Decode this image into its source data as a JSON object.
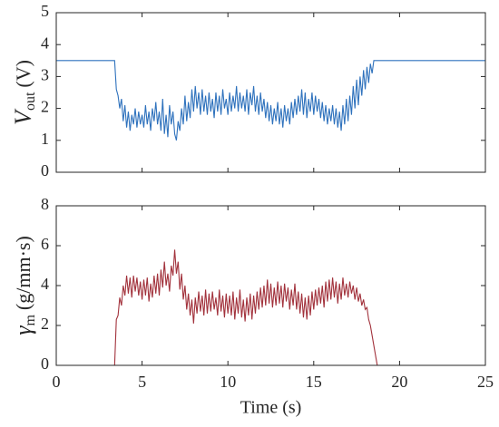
{
  "chart_data": [
    {
      "type": "line",
      "color": "#2f72bd",
      "ylabel": {
        "symbol": "V",
        "subscript": "out",
        "unit": "(V)"
      },
      "xlim": [
        0,
        25
      ],
      "xticks": [
        0,
        5,
        10,
        15,
        20,
        25
      ],
      "ylim": [
        0,
        5
      ],
      "yticks": [
        0,
        1,
        2,
        3,
        4,
        5
      ],
      "x": [
        0,
        3.4,
        3.5,
        3.6,
        3.7,
        3.8,
        3.9,
        4.0,
        4.1,
        4.2,
        4.3,
        4.4,
        4.5,
        4.6,
        4.7,
        4.8,
        4.9,
        5.0,
        5.1,
        5.2,
        5.3,
        5.4,
        5.5,
        5.6,
        5.7,
        5.8,
        5.9,
        6.0,
        6.1,
        6.2,
        6.3,
        6.4,
        6.5,
        6.6,
        6.7,
        6.8,
        6.9,
        7.0,
        7.1,
        7.2,
        7.3,
        7.4,
        7.5,
        7.6,
        7.7,
        7.8,
        7.9,
        8.0,
        8.1,
        8.2,
        8.3,
        8.4,
        8.5,
        8.6,
        8.7,
        8.8,
        8.9,
        9.0,
        9.1,
        9.2,
        9.3,
        9.4,
        9.5,
        9.6,
        9.7,
        9.8,
        9.9,
        10.0,
        10.1,
        10.2,
        10.3,
        10.4,
        10.5,
        10.6,
        10.7,
        10.8,
        10.9,
        11.0,
        11.1,
        11.2,
        11.3,
        11.4,
        11.5,
        11.6,
        11.7,
        11.8,
        11.9,
        12.0,
        12.1,
        12.2,
        12.3,
        12.4,
        12.5,
        12.6,
        12.7,
        12.8,
        12.9,
        13.0,
        13.1,
        13.2,
        13.3,
        13.4,
        13.5,
        13.6,
        13.7,
        13.8,
        13.9,
        14.0,
        14.1,
        14.2,
        14.3,
        14.4,
        14.5,
        14.6,
        14.7,
        14.8,
        14.9,
        15.0,
        15.1,
        15.2,
        15.3,
        15.4,
        15.5,
        15.6,
        15.7,
        15.8,
        15.9,
        16.0,
        16.1,
        16.2,
        16.3,
        16.4,
        16.5,
        16.6,
        16.7,
        16.8,
        16.9,
        17.0,
        17.1,
        17.2,
        17.3,
        17.4,
        17.5,
        17.6,
        17.7,
        17.8,
        17.9,
        18.0,
        18.1,
        18.2,
        18.3,
        18.4,
        18.5,
        18.6,
        18.7,
        18.8,
        18.9,
        25
      ],
      "values": [
        3.5,
        3.5,
        2.6,
        2.4,
        2.0,
        2.3,
        1.6,
        2.1,
        1.4,
        1.9,
        1.3,
        1.8,
        1.5,
        2.0,
        1.4,
        1.9,
        1.5,
        1.8,
        1.4,
        2.1,
        1.5,
        1.9,
        1.3,
        2.0,
        1.6,
        2.2,
        1.5,
        1.9,
        1.3,
        2.3,
        1.2,
        1.8,
        1.1,
        2.1,
        1.5,
        1.9,
        1.2,
        1.0,
        1.6,
        1.3,
        2.0,
        1.5,
        2.4,
        1.6,
        2.2,
        1.7,
        2.6,
        1.9,
        2.7,
        2.0,
        2.5,
        1.8,
        2.6,
        1.9,
        2.4,
        1.8,
        2.5,
        1.9,
        2.3,
        1.7,
        2.5,
        1.9,
        2.4,
        1.8,
        2.6,
        2.0,
        2.3,
        1.8,
        2.5,
        1.9,
        2.4,
        2.0,
        2.7,
        1.9,
        2.5,
        2.0,
        2.4,
        1.9,
        2.6,
        1.8,
        2.5,
        2.1,
        2.7,
        1.9,
        2.4,
        1.8,
        2.5,
        1.9,
        2.3,
        1.7,
        2.2,
        1.6,
        2.1,
        1.5,
        2.0,
        1.6,
        2.2,
        1.5,
        2.0,
        1.4,
        2.1,
        1.6,
        2.0,
        1.5,
        2.2,
        1.7,
        2.3,
        1.8,
        2.4,
        1.9,
        2.6,
        1.8,
        2.5,
        1.7,
        2.3,
        1.9,
        2.5,
        1.8,
        2.4,
        1.9,
        2.3,
        1.7,
        2.2,
        1.6,
        2.1,
        1.5,
        2.0,
        1.6,
        2.1,
        1.5,
        2.0,
        1.4,
        1.9,
        1.3,
        2.1,
        1.5,
        2.3,
        1.6,
        2.4,
        1.8,
        2.7,
        2.0,
        2.9,
        2.1,
        3.0,
        2.4,
        3.2,
        2.6,
        3.3,
        2.8,
        3.4,
        3.1,
        3.5,
        3.5,
        3.5,
        3.5,
        3.5,
        3.5
      ]
    },
    {
      "type": "line",
      "color": "#a2323c",
      "ylabel": {
        "symbol": "γ",
        "subscript": "m",
        "unit": "(g/mm·s)"
      },
      "xlabel": "Time (s)",
      "xlim": [
        0,
        25
      ],
      "xticks": [
        0,
        5,
        10,
        15,
        20,
        25
      ],
      "ylim": [
        0,
        8
      ],
      "yticks": [
        0,
        2,
        4,
        6,
        8
      ],
      "x": [
        0,
        3.4,
        3.5,
        3.6,
        3.7,
        3.8,
        3.9,
        4.0,
        4.1,
        4.2,
        4.3,
        4.4,
        4.5,
        4.6,
        4.7,
        4.8,
        4.9,
        5.0,
        5.1,
        5.2,
        5.3,
        5.4,
        5.5,
        5.6,
        5.7,
        5.8,
        5.9,
        6.0,
        6.1,
        6.2,
        6.3,
        6.4,
        6.5,
        6.6,
        6.7,
        6.8,
        6.9,
        7.0,
        7.1,
        7.2,
        7.3,
        7.4,
        7.5,
        7.6,
        7.7,
        7.8,
        7.9,
        8.0,
        8.1,
        8.2,
        8.3,
        8.4,
        8.5,
        8.6,
        8.7,
        8.8,
        8.9,
        9.0,
        9.1,
        9.2,
        9.3,
        9.4,
        9.5,
        9.6,
        9.7,
        9.8,
        9.9,
        10.0,
        10.1,
        10.2,
        10.3,
        10.4,
        10.5,
        10.6,
        10.7,
        10.8,
        10.9,
        11.0,
        11.1,
        11.2,
        11.3,
        11.4,
        11.5,
        11.6,
        11.7,
        11.8,
        11.9,
        12.0,
        12.1,
        12.2,
        12.3,
        12.4,
        12.5,
        12.6,
        12.7,
        12.8,
        12.9,
        13.0,
        13.1,
        13.2,
        13.3,
        13.4,
        13.5,
        13.6,
        13.7,
        13.8,
        13.9,
        14.0,
        14.1,
        14.2,
        14.3,
        14.4,
        14.5,
        14.6,
        14.7,
        14.8,
        14.9,
        15.0,
        15.1,
        15.2,
        15.3,
        15.4,
        15.5,
        15.6,
        15.7,
        15.8,
        15.9,
        16.0,
        16.1,
        16.2,
        16.3,
        16.4,
        16.5,
        16.6,
        16.7,
        16.8,
        16.9,
        17.0,
        17.1,
        17.2,
        17.3,
        17.4,
        17.5,
        17.6,
        17.7,
        17.8,
        17.9,
        18.0,
        18.1,
        18.2,
        18.3,
        18.4,
        18.5,
        18.6,
        18.7,
        18.8,
        18.9,
        25
      ],
      "values": [
        0,
        0,
        2.3,
        2.5,
        3.4,
        3.0,
        4.0,
        3.5,
        4.5,
        3.6,
        4.4,
        3.4,
        4.5,
        3.7,
        4.4,
        3.5,
        4.2,
        3.3,
        4.3,
        3.5,
        4.4,
        3.2,
        4.1,
        3.4,
        4.5,
        3.6,
        4.6,
        3.5,
        4.8,
        3.9,
        5.2,
        4.0,
        4.6,
        3.7,
        5.0,
        4.5,
        5.8,
        4.6,
        5.2,
        3.8,
        4.6,
        3.3,
        4.0,
        2.8,
        3.6,
        2.5,
        3.3,
        2.1,
        3.4,
        2.6,
        3.7,
        2.7,
        3.5,
        2.5,
        3.8,
        2.6,
        3.6,
        2.7,
        3.7,
        2.8,
        3.4,
        2.5,
        3.8,
        2.7,
        3.5,
        2.4,
        3.6,
        2.6,
        3.5,
        2.5,
        3.7,
        2.3,
        3.4,
        2.6,
        3.8,
        2.4,
        3.3,
        2.2,
        3.4,
        2.5,
        3.6,
        2.3,
        3.5,
        2.6,
        3.7,
        2.8,
        3.9,
        2.9,
        4.0,
        3.0,
        4.3,
        3.1,
        4.1,
        2.9,
        3.9,
        3.0,
        4.2,
        3.1,
        4.0,
        2.9,
        4.1,
        3.2,
        3.9,
        2.8,
        3.8,
        3.0,
        4.1,
        2.8,
        3.7,
        2.6,
        3.6,
        2.4,
        3.4,
        2.3,
        3.5,
        2.5,
        3.7,
        2.8,
        3.8,
        3.0,
        3.9,
        3.1,
        4.0,
        2.9,
        4.2,
        3.2,
        4.3,
        3.3,
        4.4,
        3.4,
        4.2,
        3.1,
        4.1,
        3.3,
        4.4,
        3.5,
        4.1,
        3.4,
        4.2,
        3.6,
        4.0,
        3.3,
        3.9,
        3.2,
        3.6,
        3.0,
        3.3,
        2.8,
        2.9,
        2.3,
        2.0,
        1.5,
        1.0,
        0.5,
        0.0,
        0.0,
        0.0,
        0
      ]
    }
  ]
}
